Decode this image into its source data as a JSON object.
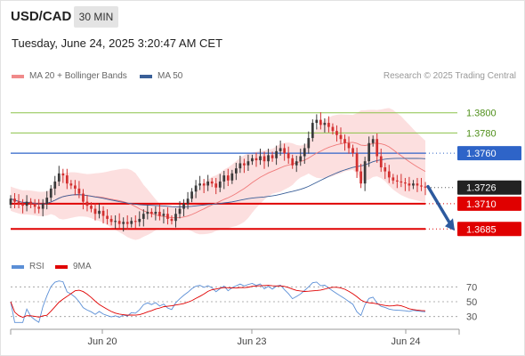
{
  "header": {
    "symbol": "USD/CAD",
    "timeframe": "30 MIN",
    "datetime": "Tuesday, June 24, 2025 3:20:47 AM CET",
    "credit": "Research © 2025 Trading Central"
  },
  "legend": {
    "ma20_label": "MA 20 + Bollinger Bands",
    "ma50_label": "MA 50",
    "rsi_label": "RSI",
    "rsi_ma_label": "9MA"
  },
  "colors": {
    "candle_up": "#3a3a3a",
    "candle_down": "#d32f2f",
    "bollinger_fill": "#fbd4d4",
    "ma20": "#f07a7a",
    "ma50": "#3a5f98",
    "resistance_line": "#8bc34a",
    "pivot_line": "#2e64c8",
    "support_line": "#e00000",
    "last_price_badge": "#222222",
    "arrow": "#2d5a9e",
    "rsi": "#5b8fd6",
    "rsi_ma": "#e00000"
  },
  "chart_data": [
    {
      "type": "candlestick",
      "title": "USD/CAD",
      "timeframe": "30 MIN",
      "x_tick_labels": [
        "Jun 20",
        "Jun 23",
        "Jun 24"
      ],
      "ylim": [
        1.3665,
        1.382
      ],
      "levels": [
        {
          "value": 1.38,
          "label": "1.3800",
          "kind": "resistance"
        },
        {
          "value": 1.378,
          "label": "1.3780",
          "kind": "resistance"
        },
        {
          "value": 1.376,
          "label": "1.3760",
          "kind": "pivot"
        },
        {
          "value": 1.3726,
          "label": "1.3726",
          "kind": "last"
        },
        {
          "value": 1.371,
          "label": "1.3710",
          "kind": "support"
        },
        {
          "value": 1.3685,
          "label": "1.3685",
          "kind": "support"
        }
      ],
      "arrow": {
        "from": 1.3727,
        "to": 1.3685,
        "direction": "down"
      },
      "close": [
        1.3715,
        1.3712,
        1.371,
        1.3708,
        1.3712,
        1.3709,
        1.3707,
        1.3705,
        1.371,
        1.3716,
        1.3725,
        1.3732,
        1.374,
        1.3738,
        1.373,
        1.3728,
        1.3725,
        1.372,
        1.3712,
        1.3708,
        1.3705,
        1.37,
        1.3703,
        1.3698,
        1.3695,
        1.3692,
        1.3693,
        1.369,
        1.3692,
        1.369,
        1.3693,
        1.3692,
        1.3695,
        1.37,
        1.3702,
        1.37,
        1.3702,
        1.3698,
        1.37,
        1.3695,
        1.3693,
        1.37,
        1.3705,
        1.371,
        1.3715,
        1.3722,
        1.3728,
        1.373,
        1.3728,
        1.3732,
        1.373,
        1.3726,
        1.3732,
        1.3738,
        1.3733,
        1.374,
        1.3745,
        1.375,
        1.3748,
        1.3752,
        1.3755,
        1.3753,
        1.3757,
        1.3752,
        1.3758,
        1.3755,
        1.3762,
        1.3765,
        1.376,
        1.3755,
        1.3748,
        1.3752,
        1.3757,
        1.3765,
        1.3775,
        1.379,
        1.3793,
        1.3788,
        1.379,
        1.3786,
        1.3782,
        1.3778,
        1.3774,
        1.377,
        1.3765,
        1.376,
        1.3742,
        1.373,
        1.3752,
        1.377,
        1.3774,
        1.3757,
        1.3746,
        1.3742,
        1.3736,
        1.3733,
        1.3732,
        1.3731,
        1.373,
        1.3728,
        1.373,
        1.3728,
        1.3727,
        1.3726
      ]
    },
    {
      "type": "line",
      "title": "RSI",
      "series": [
        {
          "name": "RSI"
        },
        {
          "name": "9MA"
        }
      ],
      "y_tick_labels": [
        "70",
        "50",
        "30"
      ],
      "ylim": [
        20,
        80
      ],
      "reference_lines": [
        70,
        50,
        30
      ]
    }
  ]
}
